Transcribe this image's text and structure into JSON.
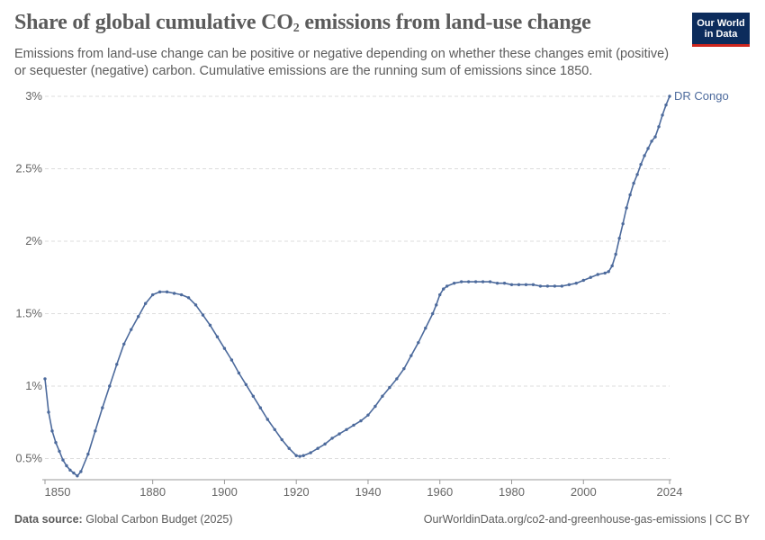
{
  "header": {
    "title_main": "Share of global cumulative CO",
    "title_sub": "2",
    "title_rest": " emissions from land-use change",
    "subtitle": "Emissions from land-use change can be positive or negative depending on whether these changes emit (positive) or sequester (negative) carbon. Cumulative emissions are the running sum of emissions since 1850."
  },
  "logo": {
    "line1": "Our World",
    "line2": "in Data"
  },
  "footer": {
    "source_label": "Data source:",
    "source_value": "Global Carbon Budget (2025)",
    "link": "OurWorldinData.org/co2-and-greenhouse-gas-emissions | CC BY"
  },
  "colors": {
    "series": "#4c6a9c",
    "grid": "#dddddd",
    "axis": "#999999"
  },
  "chart_data": {
    "type": "line",
    "xlim": [
      1850,
      2024
    ],
    "ylim": [
      0.36,
      3.0
    ],
    "x_ticks": [
      1850,
      1880,
      1900,
      1920,
      1940,
      1960,
      1980,
      2000,
      2024
    ],
    "y_ticks": [
      0.5,
      1,
      1.5,
      2,
      2.5,
      3
    ],
    "y_tick_labels": [
      "0.5%",
      "1%",
      "1.5%",
      "2%",
      "2.5%",
      "3%"
    ],
    "grid": "horizontal dashed",
    "series": [
      {
        "name": "DR Congo",
        "markers": true,
        "points": [
          [
            1850,
            1.05
          ],
          [
            1851,
            0.82
          ],
          [
            1852,
            0.69
          ],
          [
            1853,
            0.61
          ],
          [
            1854,
            0.55
          ],
          [
            1855,
            0.49
          ],
          [
            1856,
            0.45
          ],
          [
            1857,
            0.42
          ],
          [
            1858,
            0.4
          ],
          [
            1859,
            0.38
          ],
          [
            1860,
            0.41
          ],
          [
            1862,
            0.53
          ],
          [
            1864,
            0.69
          ],
          [
            1866,
            0.85
          ],
          [
            1868,
            1.0
          ],
          [
            1870,
            1.15
          ],
          [
            1872,
            1.29
          ],
          [
            1874,
            1.39
          ],
          [
            1876,
            1.48
          ],
          [
            1878,
            1.57
          ],
          [
            1880,
            1.63
          ],
          [
            1882,
            1.65
          ],
          [
            1884,
            1.65
          ],
          [
            1886,
            1.64
          ],
          [
            1888,
            1.63
          ],
          [
            1890,
            1.61
          ],
          [
            1892,
            1.56
          ],
          [
            1894,
            1.49
          ],
          [
            1896,
            1.42
          ],
          [
            1898,
            1.34
          ],
          [
            1900,
            1.26
          ],
          [
            1902,
            1.18
          ],
          [
            1904,
            1.09
          ],
          [
            1906,
            1.01
          ],
          [
            1908,
            0.93
          ],
          [
            1910,
            0.85
          ],
          [
            1912,
            0.77
          ],
          [
            1914,
            0.7
          ],
          [
            1916,
            0.63
          ],
          [
            1918,
            0.57
          ],
          [
            1920,
            0.52
          ],
          [
            1921,
            0.515
          ],
          [
            1922,
            0.52
          ],
          [
            1924,
            0.54
          ],
          [
            1926,
            0.57
          ],
          [
            1928,
            0.6
          ],
          [
            1930,
            0.64
          ],
          [
            1932,
            0.67
          ],
          [
            1934,
            0.7
          ],
          [
            1936,
            0.73
          ],
          [
            1938,
            0.76
          ],
          [
            1940,
            0.8
          ],
          [
            1942,
            0.86
          ],
          [
            1944,
            0.93
          ],
          [
            1946,
            0.99
          ],
          [
            1948,
            1.05
          ],
          [
            1950,
            1.12
          ],
          [
            1952,
            1.21
          ],
          [
            1954,
            1.3
          ],
          [
            1956,
            1.4
          ],
          [
            1958,
            1.5
          ],
          [
            1959,
            1.56
          ],
          [
            1960,
            1.63
          ],
          [
            1961,
            1.67
          ],
          [
            1962,
            1.69
          ],
          [
            1964,
            1.71
          ],
          [
            1966,
            1.72
          ],
          [
            1968,
            1.72
          ],
          [
            1970,
            1.72
          ],
          [
            1972,
            1.72
          ],
          [
            1974,
            1.72
          ],
          [
            1976,
            1.71
          ],
          [
            1978,
            1.71
          ],
          [
            1980,
            1.7
          ],
          [
            1982,
            1.7
          ],
          [
            1984,
            1.7
          ],
          [
            1986,
            1.7
          ],
          [
            1988,
            1.69
          ],
          [
            1990,
            1.69
          ],
          [
            1992,
            1.69
          ],
          [
            1994,
            1.69
          ],
          [
            1996,
            1.7
          ],
          [
            1998,
            1.71
          ],
          [
            2000,
            1.73
          ],
          [
            2002,
            1.75
          ],
          [
            2004,
            1.77
          ],
          [
            2006,
            1.78
          ],
          [
            2007,
            1.79
          ],
          [
            2008,
            1.83
          ],
          [
            2009,
            1.91
          ],
          [
            2010,
            2.02
          ],
          [
            2011,
            2.12
          ],
          [
            2012,
            2.23
          ],
          [
            2013,
            2.32
          ],
          [
            2014,
            2.4
          ],
          [
            2015,
            2.46
          ],
          [
            2016,
            2.53
          ],
          [
            2017,
            2.59
          ],
          [
            2018,
            2.64
          ],
          [
            2019,
            2.69
          ],
          [
            2020,
            2.72
          ],
          [
            2021,
            2.79
          ],
          [
            2022,
            2.87
          ],
          [
            2023,
            2.94
          ],
          [
            2024,
            3.0
          ]
        ]
      }
    ]
  }
}
